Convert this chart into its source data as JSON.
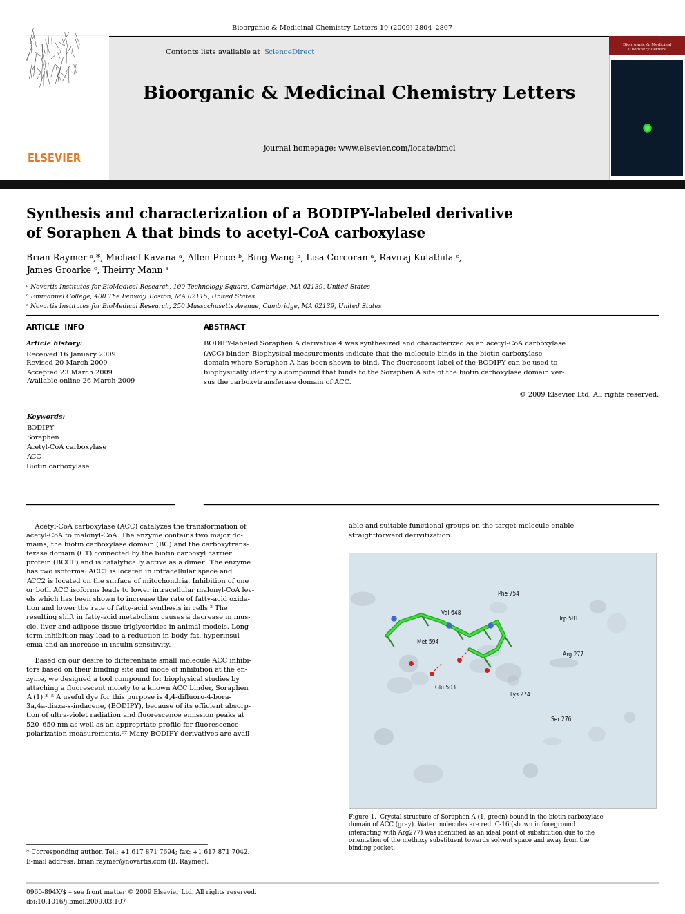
{
  "journal_header": "Bioorganic & Medicinal Chemistry Letters 19 (2009) 2804–2807",
  "journal_name": "Bioorganic & Medicinal Chemistry Letters",
  "journal_homepage": "journal homepage: www.elsevier.com/locate/bmcl",
  "contents_line": "Contents lists available at ScienceDirect",
  "title_line1": "Synthesis and characterization of a BODIPY-labeled derivative",
  "title_line2": "of Soraphen A that binds to acetyl-CoA carboxylase",
  "authors_line1": "Brian Raymer ᵃ,*, Michael Kavana ᵃ, Allen Price ᵇ, Bing Wang ᵃ, Lisa Corcoran ᵃ, Raviraj Kulathila ᶜ,",
  "authors_line2": "James Groarke ᶜ, Theirry Mann ᵃ",
  "affil_a": "ᵃ Novartis Institutes for BioMedical Research, 100 Technology Square, Cambridge, MA 02139, United States",
  "affil_b": "ᵇ Emmanuel College, 400 The Fenway, Boston, MA 02115, United States",
  "affil_c": "ᶜ Novartis Institutes for BioMedical Research, 250 Massachusetts Avenue, Cambridge, MA 02139, United States",
  "article_info_header": "ARTICLE  INFO",
  "abstract_header": "ABSTRACT",
  "article_history_label": "Article history:",
  "received": "Received 16 January 2009",
  "revised": "Revised 20 March 2009",
  "accepted": "Accepted 23 March 2009",
  "available": "Available online 26 March 2009",
  "keywords_label": "Keywords:",
  "keywords": [
    "BODIPY",
    "Soraphen",
    "Acetyl-CoA carboxylase",
    "ACC",
    "Biotin carboxylase"
  ],
  "abstract_lines": [
    "BODIPY-labeled Soraphen A derivative 4 was synthesized and characterized as an acetyl-CoA carboxylase",
    "(ACC) binder. Biophysical measurements indicate that the molecule binds in the biotin carboxylase",
    "domain where Soraphen A has been shown to bind. The fluorescent label of the BODIPY can be used to",
    "biophysically identify a compound that binds to the Soraphen A site of the biotin carboxylase domain ver-",
    "sus the carboxytransferase domain of ACC."
  ],
  "copyright": "© 2009 Elsevier Ltd. All rights reserved.",
  "col1_p1": [
    "    Acetyl-CoA carboxylase (ACC) catalyzes the transformation of",
    "acetyl-CoA to malonyl-CoA. The enzyme contains two major do-",
    "mains; the biotin carboxylase domain (BC) and the carboxytrans-",
    "ferase domain (CT) connected by the biotin carboxyl carrier",
    "protein (BCCP) and is catalytically active as a dimer¹ The enzyme",
    "has two isoforms: ACC1 is located in intracellular space and",
    "ACC2 is located on the surface of mitochondria. Inhibition of one",
    "or both ACC isoforms leads to lower intracellular malonyl-CoA lev-",
    "els which has been shown to increase the rate of fatty-acid oxida-",
    "tion and lower the rate of fatty-acid synthesis in cells.² The",
    "resulting shift in fatty-acid metabolism causes a decrease in mus-",
    "cle, liver and adipose tissue triglycerides in animal models. Long",
    "term inhibition may lead to a reduction in body fat, hyperinsul-",
    "emia and an increase in insulin sensitivity."
  ],
  "col1_p2": [
    "    Based on our desire to differentiate small molecule ACC inhibi-",
    "tors based on their binding site and mode of inhibition at the en-",
    "zyme, we designed a tool compound for biophysical studies by",
    "attaching a fluorescent moiety to a known ACC binder, Soraphen",
    "A (1).³⁻⁵ A useful dye for this purpose is 4,4-difluoro-4-bora-",
    "3a,4a-diaza-s-indacene, (BODIPY), because of its efficient absorp-",
    "tion of ultra-violet radiation and fluorescence emission peaks at",
    "520–650 nm as well as an appropriate profile for fluorescence",
    "polarization measurements.⁶⁷ Many BODIPY derivatives are avail-"
  ],
  "col2_p1": [
    "able and suitable functional groups on the target molecule enable",
    "straightforward derivitization."
  ],
  "fig_labels": [
    [
      148,
      88,
      "Val 648"
    ],
    [
      232,
      62,
      "Phe 754"
    ],
    [
      308,
      92,
      "Trp 581"
    ],
    [
      120,
      130,
      "Met 594"
    ],
    [
      320,
      148,
      "Arg 277"
    ],
    [
      145,
      188,
      "Glu 503"
    ],
    [
      248,
      198,
      "Lys 274"
    ],
    [
      305,
      235,
      "Ser 276"
    ]
  ],
  "fig_caption_lines": [
    "Figure 1.  Crystal structure of Soraphen A (1, green) bound in the biotin carboxylase",
    "domain of ACC (gray). Water molecules are red. C-16 (shown in foreground",
    "interacting with Arg277) was identified as an ideal point of substitution due to the",
    "orientation of the methoxy substituent towards solvent space and away from the",
    "binding pocket."
  ],
  "footnote1": "* Corresponding author. Tel.: +1 617 871 7694; fax: +1 617 871 7042.",
  "footnote2": "E-mail address: brian.raymer@novartis.com (B. Raymer).",
  "footer_left": "0960-894X/$ – see front matter © 2009 Elsevier Ltd. All rights reserved.",
  "footer_doi": "doi:10.1016/j.bmcl.2009.03.107",
  "bg_color": "#ffffff",
  "gray_header_bg": "#e8e8e8",
  "black_bar_color": "#111111",
  "text_color": "#000000",
  "blue_color": "#1a6da0",
  "elsevier_orange": "#e87722"
}
